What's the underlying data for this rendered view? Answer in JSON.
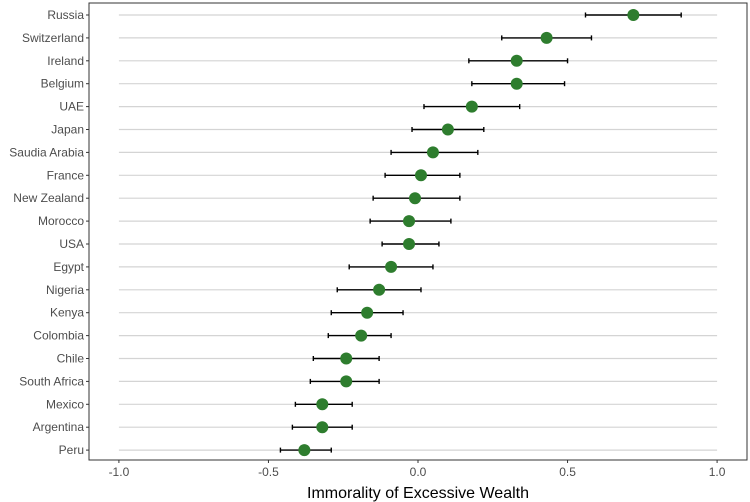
{
  "chart_data": {
    "type": "scatter",
    "subtype": "dot-plot-with-error-bars",
    "title": "",
    "xlabel": "Immorality of Excessive Wealth",
    "ylabel": "",
    "xlim": [
      -1.1,
      1.1
    ],
    "x_ticks": [
      "-1.0",
      "-0.5",
      "0.0",
      "0.5",
      "1.0"
    ],
    "x_tick_values": [
      -1.0,
      -0.5,
      0.0,
      0.5,
      1.0
    ],
    "grid": "horizontal major lines per country",
    "legend": "none",
    "colors": {
      "point": "#2e7d2e",
      "error_bar": "#000000",
      "grid": "#d4d4d4",
      "axis": "#333333"
    },
    "countries": [
      "Russia",
      "Switzerland",
      "Ireland",
      "Belgium",
      "UAE",
      "Japan",
      "Saudia Arabia",
      "France",
      "New Zealand",
      "Morocco",
      "USA",
      "Egypt",
      "Nigeria",
      "Kenya",
      "Colombia",
      "Chile",
      "South Africa",
      "Mexico",
      "Argentina",
      "Peru"
    ],
    "values": [
      0.72,
      0.43,
      0.33,
      0.33,
      0.18,
      0.1,
      0.05,
      0.01,
      -0.01,
      -0.03,
      -0.03,
      -0.09,
      -0.13,
      -0.17,
      -0.19,
      -0.24,
      -0.24,
      -0.32,
      -0.32,
      -0.38
    ],
    "ci_low": [
      0.56,
      0.28,
      0.17,
      0.18,
      0.02,
      -0.02,
      -0.09,
      -0.11,
      -0.15,
      -0.16,
      -0.12,
      -0.23,
      -0.27,
      -0.29,
      -0.3,
      -0.35,
      -0.36,
      -0.41,
      -0.42,
      -0.46
    ],
    "ci_high": [
      0.88,
      0.58,
      0.5,
      0.49,
      0.34,
      0.22,
      0.2,
      0.14,
      0.14,
      0.11,
      0.07,
      0.05,
      0.01,
      -0.05,
      -0.09,
      -0.13,
      -0.13,
      -0.22,
      -0.22,
      -0.29
    ]
  }
}
